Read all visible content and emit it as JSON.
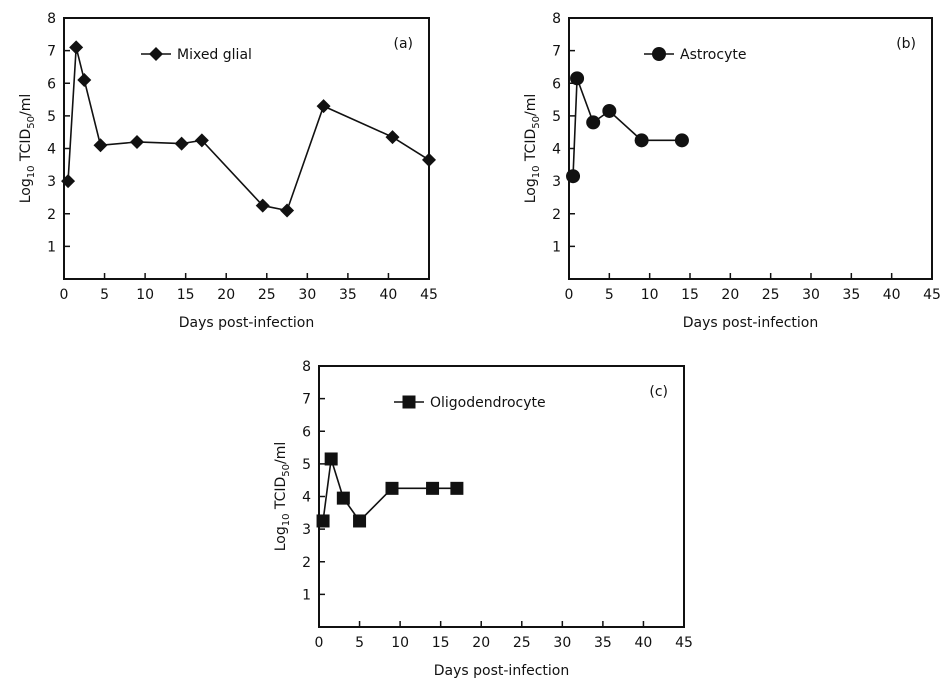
{
  "chart_data": [
    {
      "type": "line",
      "panel_label": "(a)",
      "xlabel": "Days post-infection",
      "ylabel": "Log10 TCID50/ml",
      "ylabel_parts": {
        "base": "Log",
        "base_sub": "10",
        "quantity": "TCID",
        "quantity_sub": "50",
        "unit": "/ml"
      },
      "xlim": [
        0,
        45
      ],
      "ylim": [
        0,
        8
      ],
      "x_ticks": [
        "0",
        "5",
        "10",
        "15",
        "20",
        "25",
        "30",
        "35",
        "40",
        "45"
      ],
      "y_ticks": [
        "1",
        "2",
        "3",
        "4",
        "5",
        "6",
        "7",
        "8"
      ],
      "legend_position": "top-left",
      "series": [
        {
          "name": "Mixed glial",
          "marker": "diamond",
          "x": [
            0.5,
            1.5,
            2.5,
            4.5,
            9,
            14.5,
            17,
            24.5,
            27.5,
            32,
            40.5,
            45
          ],
          "y": [
            3.0,
            7.1,
            6.1,
            4.1,
            4.2,
            4.15,
            4.25,
            2.25,
            2.1,
            5.3,
            4.35,
            3.65
          ]
        }
      ]
    },
    {
      "type": "line",
      "panel_label": "(b)",
      "xlabel": "Days post-infection",
      "ylabel": "Log10 TCID50/ml",
      "ylabel_parts": {
        "base": "Log",
        "base_sub": "10",
        "quantity": "TCID",
        "quantity_sub": "50",
        "unit": "/ml"
      },
      "xlim": [
        0,
        45
      ],
      "ylim": [
        0,
        8
      ],
      "x_ticks": [
        "0",
        "5",
        "10",
        "15",
        "20",
        "25",
        "30",
        "35",
        "40",
        "45"
      ],
      "y_ticks": [
        "1",
        "2",
        "3",
        "4",
        "5",
        "6",
        "7",
        "8"
      ],
      "legend_position": "top-left",
      "series": [
        {
          "name": "Astrocyte",
          "marker": "circle",
          "x": [
            0.5,
            1,
            3,
            5,
            9,
            14
          ],
          "y": [
            3.15,
            6.15,
            4.8,
            5.15,
            4.25,
            4.25
          ]
        }
      ]
    },
    {
      "type": "line",
      "panel_label": "(c)",
      "xlabel": "Days post-infection",
      "ylabel": "Log10 TCID50/ml",
      "ylabel_parts": {
        "base": "Log",
        "base_sub": "10",
        "quantity": "TCID",
        "quantity_sub": "50",
        "unit": "/ml"
      },
      "xlim": [
        0,
        45
      ],
      "ylim": [
        0,
        8
      ],
      "x_ticks": [
        "0",
        "5",
        "10",
        "15",
        "20",
        "25",
        "30",
        "35",
        "40",
        "45"
      ],
      "y_ticks": [
        "1",
        "2",
        "3",
        "4",
        "5",
        "6",
        "7",
        "8"
      ],
      "legend_position": "top-left",
      "series": [
        {
          "name": "Oligodendrocyte",
          "marker": "square",
          "x": [
            0.5,
            1.5,
            3,
            5,
            9,
            14,
            17
          ],
          "y": [
            3.25,
            5.15,
            3.95,
            3.25,
            4.25,
            4.25,
            4.25
          ]
        }
      ]
    }
  ]
}
